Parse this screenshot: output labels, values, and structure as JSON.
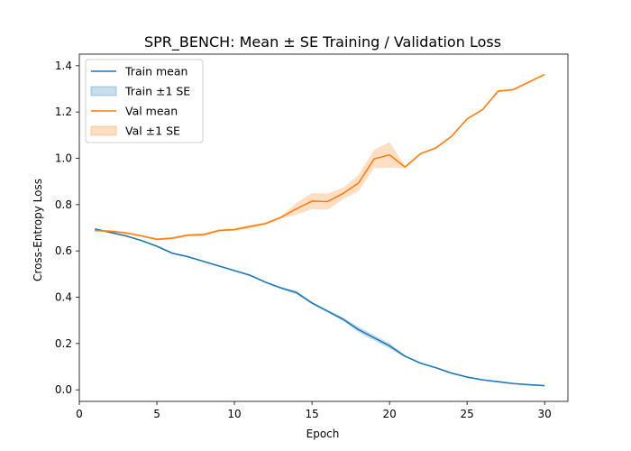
{
  "chart_data": {
    "type": "line",
    "title": "SPR_BENCH: Mean ± SE Training / Validation Loss",
    "xlabel": "Epoch",
    "ylabel": "Cross-Entropy Loss",
    "xlim": [
      0,
      31.5
    ],
    "ylim": [
      -0.05,
      1.45
    ],
    "x_ticks": [
      0,
      5,
      10,
      15,
      20,
      25,
      30
    ],
    "y_ticks": [
      0.0,
      0.2,
      0.4,
      0.6,
      0.8,
      1.0,
      1.2,
      1.4
    ],
    "x_tick_labels": [
      "0",
      "5",
      "10",
      "15",
      "20",
      "25",
      "30"
    ],
    "y_tick_labels": [
      "0.0",
      "0.2",
      "0.4",
      "0.6",
      "0.8",
      "1.0",
      "1.2",
      "1.4"
    ],
    "x": [
      1,
      2,
      3,
      4,
      5,
      6,
      7,
      8,
      9,
      10,
      11,
      12,
      13,
      14,
      15,
      16,
      17,
      18,
      19,
      20,
      21,
      22,
      23,
      24,
      25,
      26,
      27,
      28,
      29,
      30
    ],
    "series": [
      {
        "name": "Train mean",
        "band_name": "Train ±1 SE",
        "color": "#1f77b4",
        "values": [
          0.695,
          0.68,
          0.665,
          0.645,
          0.62,
          0.59,
          0.575,
          0.555,
          0.535,
          0.515,
          0.495,
          0.465,
          0.44,
          0.42,
          0.375,
          0.34,
          0.305,
          0.26,
          0.225,
          0.19,
          0.145,
          0.115,
          0.095,
          0.072,
          0.055,
          0.043,
          0.035,
          0.027,
          0.022,
          0.018
        ],
        "se": [
          0.003,
          0.003,
          0.003,
          0.003,
          0.003,
          0.003,
          0.003,
          0.003,
          0.003,
          0.003,
          0.003,
          0.003,
          0.004,
          0.008,
          0.005,
          0.005,
          0.008,
          0.012,
          0.012,
          0.012,
          0.004,
          0.003,
          0.002,
          0.002,
          0.002,
          0.002,
          0.002,
          0.001,
          0.001,
          0.001
        ]
      },
      {
        "name": "Val mean",
        "band_name": "Val ±1 SE",
        "color": "#ff7f0e",
        "values": [
          0.688,
          0.685,
          0.678,
          0.665,
          0.65,
          0.655,
          0.668,
          0.67,
          0.688,
          0.692,
          0.705,
          0.718,
          0.745,
          0.782,
          0.815,
          0.813,
          0.848,
          0.893,
          0.997,
          1.015,
          0.962,
          1.02,
          1.045,
          1.095,
          1.17,
          1.21,
          1.29,
          1.297,
          1.33,
          1.362
        ],
        "se": [
          0.004,
          0.004,
          0.004,
          0.004,
          0.004,
          0.005,
          0.005,
          0.005,
          0.005,
          0.005,
          0.008,
          0.005,
          0.005,
          0.025,
          0.035,
          0.035,
          0.025,
          0.035,
          0.04,
          0.055,
          0.005,
          0.004,
          0.004,
          0.004,
          0.004,
          0.004,
          0.004,
          0.004,
          0.004,
          0.004
        ]
      }
    ],
    "legend": {
      "placement": "top-left",
      "entries": [
        "Train mean",
        "Train ±1 SE",
        "Val mean",
        "Val ±1 SE"
      ]
    },
    "grid": false
  }
}
